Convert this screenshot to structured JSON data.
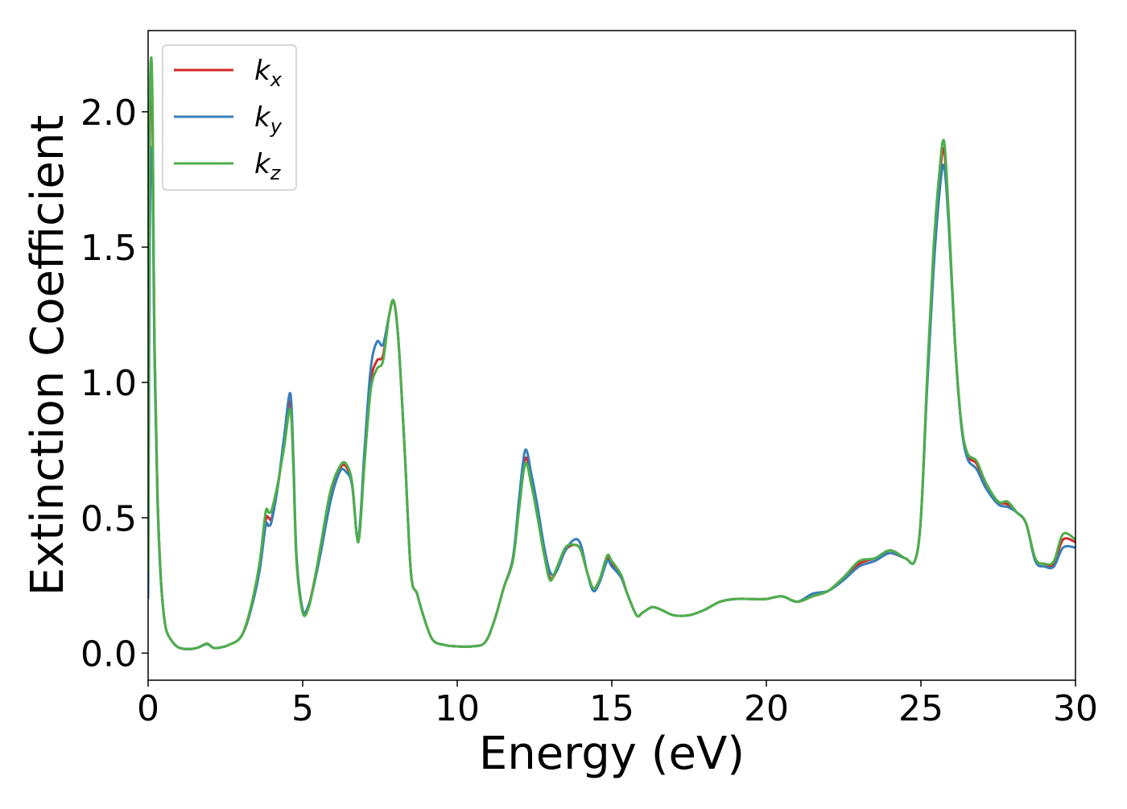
{
  "chart_data": {
    "type": "line",
    "title": "",
    "xlabel": "Energy (eV)",
    "ylabel": "Extinction Coefficient",
    "xlim": [
      0,
      30
    ],
    "ylim": [
      -0.1,
      2.3
    ],
    "xticks": [
      0,
      5,
      10,
      15,
      20,
      25,
      30
    ],
    "xtick_labels": [
      "0",
      "5",
      "10",
      "15",
      "20",
      "25",
      "30"
    ],
    "yticks": [
      0.0,
      0.5,
      1.0,
      1.5,
      2.0
    ],
    "ytick_labels": [
      "0.0",
      "0.5",
      "1.0",
      "1.5",
      "2.0"
    ],
    "grid": false,
    "legend_position": "top-left",
    "x": [
      0,
      0.05,
      0.1,
      0.15,
      0.2,
      0.3,
      0.4,
      0.5,
      0.6,
      0.8,
      1.0,
      1.3,
      1.6,
      1.9,
      2.1,
      2.3,
      2.6,
      3.0,
      3.3,
      3.6,
      3.8,
      3.9,
      4.0,
      4.2,
      4.4,
      4.6,
      4.7,
      4.8,
      5.0,
      5.2,
      5.4,
      5.6,
      5.9,
      6.2,
      6.4,
      6.6,
      6.8,
      7.0,
      7.2,
      7.4,
      7.6,
      7.8,
      7.95,
      8.1,
      8.3,
      8.5,
      8.7,
      8.9,
      9.2,
      9.6,
      10.0,
      10.5,
      10.9,
      11.2,
      11.5,
      11.8,
      12.0,
      12.2,
      12.4,
      12.6,
      12.8,
      13.0,
      13.2,
      13.5,
      13.8,
      14.0,
      14.2,
      14.4,
      14.6,
      14.85,
      15.0,
      15.3,
      15.5,
      15.8,
      16.0,
      16.3,
      16.6,
      17.0,
      17.5,
      18.0,
      18.5,
      19.0,
      19.5,
      20.0,
      20.5,
      21.0,
      21.5,
      22.0,
      22.5,
      23.0,
      23.5,
      24.0,
      24.5,
      24.8,
      25.0,
      25.2,
      25.4,
      25.6,
      25.75,
      25.9,
      26.1,
      26.3,
      26.5,
      26.8,
      27.1,
      27.5,
      27.8,
      28.1,
      28.4,
      28.7,
      29.0,
      29.3,
      29.6,
      30.0
    ],
    "series": [
      {
        "name": "k_x",
        "color": "#d62728",
        "values": [
          0.25,
          1.8,
          2.15,
          1.9,
          1.2,
          0.6,
          0.3,
          0.15,
          0.08,
          0.04,
          0.02,
          0.015,
          0.02,
          0.035,
          0.02,
          0.02,
          0.03,
          0.06,
          0.15,
          0.32,
          0.49,
          0.5,
          0.5,
          0.62,
          0.78,
          0.93,
          0.7,
          0.35,
          0.16,
          0.18,
          0.28,
          0.4,
          0.58,
          0.68,
          0.69,
          0.62,
          0.42,
          0.72,
          1.0,
          1.08,
          1.1,
          1.25,
          1.3,
          1.15,
          0.75,
          0.3,
          0.22,
          0.14,
          0.05,
          0.03,
          0.025,
          0.025,
          0.04,
          0.12,
          0.24,
          0.35,
          0.55,
          0.72,
          0.64,
          0.52,
          0.38,
          0.28,
          0.3,
          0.38,
          0.4,
          0.38,
          0.3,
          0.24,
          0.27,
          0.35,
          0.33,
          0.28,
          0.22,
          0.14,
          0.15,
          0.17,
          0.16,
          0.14,
          0.14,
          0.16,
          0.19,
          0.2,
          0.2,
          0.2,
          0.21,
          0.19,
          0.21,
          0.23,
          0.28,
          0.33,
          0.35,
          0.37,
          0.35,
          0.34,
          0.5,
          1.0,
          1.45,
          1.75,
          1.86,
          1.6,
          1.15,
          0.85,
          0.73,
          0.7,
          0.62,
          0.56,
          0.55,
          0.52,
          0.48,
          0.35,
          0.33,
          0.33,
          0.42,
          0.41
        ]
      },
      {
        "name": "k_y",
        "color": "#377eb8",
        "values": [
          0.2,
          1.5,
          1.85,
          1.75,
          1.15,
          0.58,
          0.29,
          0.15,
          0.08,
          0.04,
          0.02,
          0.015,
          0.02,
          0.033,
          0.02,
          0.02,
          0.03,
          0.06,
          0.15,
          0.3,
          0.47,
          0.47,
          0.49,
          0.62,
          0.8,
          0.96,
          0.72,
          0.36,
          0.16,
          0.18,
          0.27,
          0.38,
          0.56,
          0.67,
          0.67,
          0.62,
          0.42,
          0.75,
          1.05,
          1.15,
          1.14,
          1.25,
          1.3,
          1.15,
          0.75,
          0.3,
          0.22,
          0.14,
          0.05,
          0.03,
          0.025,
          0.025,
          0.04,
          0.12,
          0.24,
          0.35,
          0.57,
          0.75,
          0.66,
          0.54,
          0.4,
          0.3,
          0.3,
          0.38,
          0.42,
          0.4,
          0.3,
          0.23,
          0.26,
          0.34,
          0.32,
          0.28,
          0.22,
          0.14,
          0.15,
          0.17,
          0.16,
          0.14,
          0.14,
          0.16,
          0.19,
          0.2,
          0.2,
          0.2,
          0.21,
          0.19,
          0.22,
          0.23,
          0.27,
          0.32,
          0.34,
          0.37,
          0.35,
          0.34,
          0.5,
          0.98,
          1.4,
          1.7,
          1.8,
          1.58,
          1.15,
          0.85,
          0.72,
          0.68,
          0.61,
          0.55,
          0.54,
          0.52,
          0.48,
          0.34,
          0.32,
          0.32,
          0.39,
          0.39
        ]
      },
      {
        "name": "k_z",
        "color": "#4daf4a",
        "values": [
          0.3,
          1.9,
          2.2,
          1.95,
          1.22,
          0.6,
          0.3,
          0.15,
          0.08,
          0.04,
          0.02,
          0.015,
          0.02,
          0.035,
          0.02,
          0.02,
          0.03,
          0.06,
          0.16,
          0.33,
          0.52,
          0.52,
          0.53,
          0.63,
          0.76,
          0.9,
          0.68,
          0.34,
          0.15,
          0.17,
          0.28,
          0.41,
          0.6,
          0.69,
          0.7,
          0.63,
          0.41,
          0.7,
          0.97,
          1.05,
          1.08,
          1.25,
          1.3,
          1.15,
          0.75,
          0.3,
          0.22,
          0.14,
          0.05,
          0.03,
          0.025,
          0.025,
          0.04,
          0.12,
          0.24,
          0.34,
          0.53,
          0.7,
          0.62,
          0.5,
          0.37,
          0.27,
          0.31,
          0.39,
          0.4,
          0.38,
          0.3,
          0.24,
          0.27,
          0.36,
          0.34,
          0.29,
          0.22,
          0.14,
          0.15,
          0.17,
          0.16,
          0.14,
          0.14,
          0.16,
          0.19,
          0.2,
          0.2,
          0.2,
          0.21,
          0.19,
          0.21,
          0.23,
          0.28,
          0.34,
          0.35,
          0.38,
          0.35,
          0.34,
          0.5,
          1.02,
          1.48,
          1.78,
          1.89,
          1.62,
          1.16,
          0.86,
          0.74,
          0.71,
          0.63,
          0.56,
          0.56,
          0.52,
          0.48,
          0.35,
          0.33,
          0.34,
          0.44,
          0.42
        ]
      }
    ]
  },
  "legend": {
    "items": [
      {
        "base": "k",
        "sub": "x"
      },
      {
        "base": "k",
        "sub": "y"
      },
      {
        "base": "k",
        "sub": "z"
      }
    ]
  }
}
